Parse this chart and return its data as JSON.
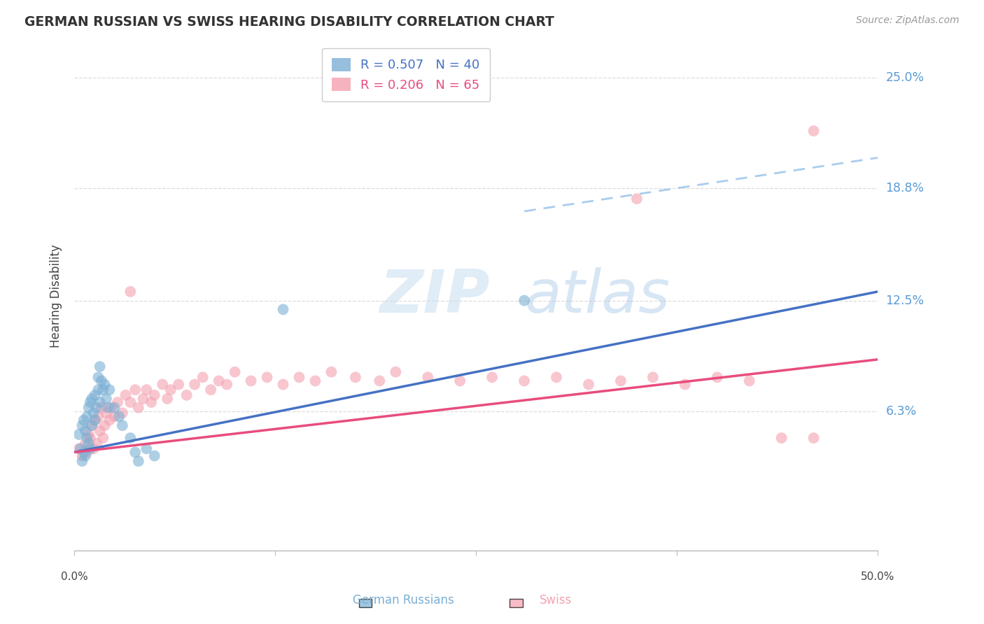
{
  "title": "GERMAN RUSSIAN VS SWISS HEARING DISABILITY CORRELATION CHART",
  "source": "Source: ZipAtlas.com",
  "ylabel": "Hearing Disability",
  "ytick_labels": [
    "25.0%",
    "18.8%",
    "12.5%",
    "6.3%"
  ],
  "ytick_values": [
    0.25,
    0.188,
    0.125,
    0.063
  ],
  "xlim": [
    0.0,
    0.5
  ],
  "ylim": [
    -0.015,
    0.27
  ],
  "legend_blue_r": "R = 0.507",
  "legend_blue_n": "N = 40",
  "legend_pink_r": "R = 0.206",
  "legend_pink_n": "N = 65",
  "legend_label_blue": "German Russians",
  "legend_label_pink": "Swiss",
  "blue_color": "#7BAFD4",
  "pink_color": "#F4A0B0",
  "blue_line_color": "#4472C4",
  "pink_line_color": "#E84C7D",
  "dashed_line_color": "#AACCEE",
  "watermark_zip": "ZIP",
  "watermark_atlas": "atlas",
  "blue_points_x": [
    0.003,
    0.004,
    0.005,
    0.005,
    0.006,
    0.006,
    0.007,
    0.007,
    0.008,
    0.008,
    0.009,
    0.009,
    0.01,
    0.01,
    0.011,
    0.011,
    0.012,
    0.013,
    0.013,
    0.014,
    0.015,
    0.015,
    0.016,
    0.016,
    0.017,
    0.018,
    0.019,
    0.02,
    0.021,
    0.022,
    0.025,
    0.028,
    0.03,
    0.035,
    0.038,
    0.04,
    0.045,
    0.05,
    0.13,
    0.28
  ],
  "blue_points_y": [
    0.05,
    0.042,
    0.035,
    0.055,
    0.04,
    0.058,
    0.038,
    0.052,
    0.048,
    0.06,
    0.045,
    0.065,
    0.042,
    0.068,
    0.07,
    0.055,
    0.062,
    0.058,
    0.072,
    0.065,
    0.075,
    0.082,
    0.068,
    0.088,
    0.08,
    0.075,
    0.078,
    0.07,
    0.065,
    0.075,
    0.065,
    0.06,
    0.055,
    0.048,
    0.04,
    0.035,
    0.042,
    0.038,
    0.12,
    0.125
  ],
  "pink_points_x": [
    0.003,
    0.005,
    0.007,
    0.008,
    0.009,
    0.01,
    0.011,
    0.012,
    0.013,
    0.014,
    0.015,
    0.016,
    0.017,
    0.018,
    0.019,
    0.02,
    0.022,
    0.023,
    0.025,
    0.027,
    0.03,
    0.032,
    0.035,
    0.038,
    0.04,
    0.043,
    0.045,
    0.048,
    0.05,
    0.055,
    0.058,
    0.06,
    0.065,
    0.07,
    0.075,
    0.08,
    0.085,
    0.09,
    0.095,
    0.1,
    0.11,
    0.12,
    0.13,
    0.14,
    0.15,
    0.16,
    0.175,
    0.19,
    0.2,
    0.22,
    0.24,
    0.26,
    0.28,
    0.3,
    0.32,
    0.34,
    0.36,
    0.38,
    0.4,
    0.42,
    0.44,
    0.46,
    0.035,
    0.35,
    0.46
  ],
  "pink_points_y": [
    0.042,
    0.038,
    0.045,
    0.04,
    0.05,
    0.048,
    0.055,
    0.042,
    0.058,
    0.045,
    0.06,
    0.052,
    0.065,
    0.048,
    0.055,
    0.062,
    0.058,
    0.065,
    0.06,
    0.068,
    0.062,
    0.072,
    0.068,
    0.075,
    0.065,
    0.07,
    0.075,
    0.068,
    0.072,
    0.078,
    0.07,
    0.075,
    0.078,
    0.072,
    0.078,
    0.082,
    0.075,
    0.08,
    0.078,
    0.085,
    0.08,
    0.082,
    0.078,
    0.082,
    0.08,
    0.085,
    0.082,
    0.08,
    0.085,
    0.082,
    0.08,
    0.082,
    0.08,
    0.082,
    0.078,
    0.08,
    0.082,
    0.078,
    0.082,
    0.08,
    0.048,
    0.048,
    0.13,
    0.182,
    0.22
  ],
  "blue_line_y_start": 0.04,
  "blue_line_y_end": 0.13,
  "pink_line_y_start": 0.04,
  "pink_line_y_end": 0.092,
  "dashed_line_x_start": 0.28,
  "dashed_line_x_end": 0.5,
  "dashed_line_y_start": 0.175,
  "dashed_line_y_end": 0.205,
  "background_color": "#FFFFFF",
  "grid_color": "#DDDDDD"
}
